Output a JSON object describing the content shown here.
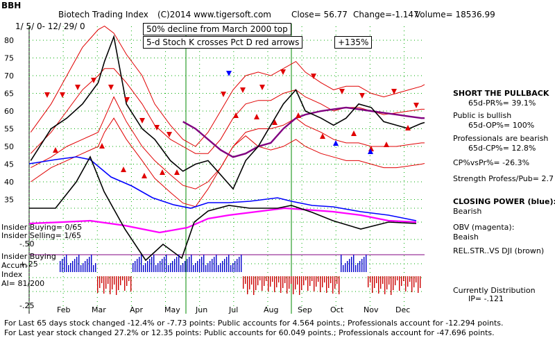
{
  "header": {
    "ticker": "BBH",
    "title": "Biotech Trading Index",
    "source": "(C)2014 www.tigersoft.com",
    "close": "Close=  56.77",
    "change": "Change=-1.147",
    "volume": "Volume= 18536.99",
    "date_range": "1/ 5/ 0- 12/ 29/ 0"
  },
  "annotations": {
    "box1": "50% decline from March 2000 top",
    "box2": "5-d Stoch K crosses Pct D red arrows",
    "box3": "+135%"
  },
  "left_labels": {
    "insider_buying_count": "Insider Buying= 0/65",
    "insider_selling_count": "Insider Selling= 1/65",
    "minus50": "-.50",
    "insider_buying": "Insider Buying",
    "accum": "Accum",
    "index": "Index",
    "plus25": "+.25",
    "ai": "AI= 81/200",
    "minus25": "-.25"
  },
  "right_panel": {
    "l1": "SHORT THE PULLBACK",
    "l2": "65d-PR%= 39.1%",
    "l3": "Public is bullish",
    "l4": "65d-OP%= 100%",
    "l5": "Professionals are bearish",
    "l6": "65d-CP%= 12.8%",
    "l7": "CP%vsPr%= -26.3%",
    "l8": "Strength Profess/Pub= 2.7",
    "l9": "CLOSING POWER (blue):",
    "l10": "Bearish",
    "l11": "OBV (magenta):",
    "l12": "Beaish",
    "l13": "REL.STR..VS DJI (brown)",
    "l14": "Currently Distribution",
    "l15": "IP= -.121"
  },
  "footer": {
    "line1": "For Last 65 days stock changed -12.4% or -7.73 points:  Public accounts for  4.564 points.;  Professionals account for -12.294 points.",
    "line2": "For Last year stock changed  27.2% or  12.35 points:  Public accounts for  60.049 points.;  Professionals account for -47.696 points."
  },
  "colors": {
    "price": "#000000",
    "band_red": "#e00000",
    "ma_purple": "#800080",
    "closing_power_blue": "#0000ff",
    "obv_magenta": "#ff00ff",
    "grid_green": "#00aa00",
    "vline_green": "#008800",
    "hist_positive": "#0000cc",
    "hist_negative": "#cc0000"
  },
  "chart_data": {
    "type": "line",
    "title": "Biotech Trading Index",
    "ticker": "BBH",
    "x_months": [
      "Feb",
      "Mar",
      "Apr",
      "May",
      "Jun",
      "Jul",
      "Aug",
      "Sep",
      "Oct",
      "Nov",
      "Dec"
    ],
    "y_ticks": [
      35,
      40,
      45,
      50,
      55,
      60,
      65,
      70,
      75,
      80
    ],
    "ylim": [
      31,
      84
    ],
    "grid": true,
    "x": [
      1,
      14,
      24,
      34,
      44,
      48,
      54,
      62,
      72,
      80,
      90,
      98,
      106,
      114,
      122,
      130,
      138,
      146,
      154,
      162,
      170,
      176,
      186,
      194,
      202,
      210,
      218,
      226,
      234,
      242,
      250,
      252
    ],
    "series": [
      {
        "name": "close",
        "values": [
          46,
          55,
          58,
          62,
          68,
          74,
          81,
          62,
          55,
          52,
          46,
          43,
          45,
          46,
          42,
          38,
          46,
          50,
          56,
          62,
          66,
          60,
          58,
          56,
          58,
          62,
          61,
          57,
          56,
          55,
          56.5,
          56.77
        ]
      },
      {
        "name": "upper band",
        "values": [
          54,
          62,
          70,
          78,
          83,
          84,
          82,
          76,
          70,
          62,
          56,
          52,
          50,
          54,
          60,
          66,
          70,
          71,
          70,
          72,
          74,
          71,
          68,
          66,
          67,
          67,
          65,
          64,
          65,
          66,
          67,
          67.5
        ]
      },
      {
        "name": "lower band",
        "values": [
          40,
          44,
          46,
          48,
          50,
          54,
          58,
          52,
          46,
          41,
          37,
          34,
          33,
          38,
          44,
          50,
          53,
          50,
          49,
          50,
          52,
          50,
          48,
          47,
          46,
          46,
          45,
          44,
          44,
          44.5,
          45,
          45.2
        ]
      },
      {
        "name": "inner upper",
        "values": [
          48,
          54,
          60,
          66,
          70,
          72,
          72,
          68,
          62,
          56,
          52,
          50,
          48,
          48,
          52,
          58,
          62,
          63,
          63,
          65,
          66,
          64,
          62,
          60,
          61,
          61,
          60,
          59,
          59.5,
          60,
          60.5,
          60.5
        ]
      },
      {
        "name": "inner lower",
        "values": [
          44,
          47,
          50,
          52,
          54,
          58,
          64,
          57,
          50,
          46,
          42,
          39,
          38,
          40,
          44,
          50,
          54,
          55,
          55,
          56,
          58,
          56,
          54,
          52,
          51,
          51,
          50,
          50,
          50,
          50.5,
          51,
          51
        ]
      },
      {
        "name": "50-day MA",
        "values": [
          null,
          null,
          null,
          null,
          null,
          null,
          null,
          null,
          null,
          null,
          null,
          57,
          55,
          52,
          49,
          47,
          48,
          50,
          51,
          55,
          58,
          59,
          60,
          60.5,
          61,
          60.5,
          60,
          59.5,
          59,
          58.5,
          58,
          58
        ]
      }
    ],
    "price_band_smoothing": true
  }
}
